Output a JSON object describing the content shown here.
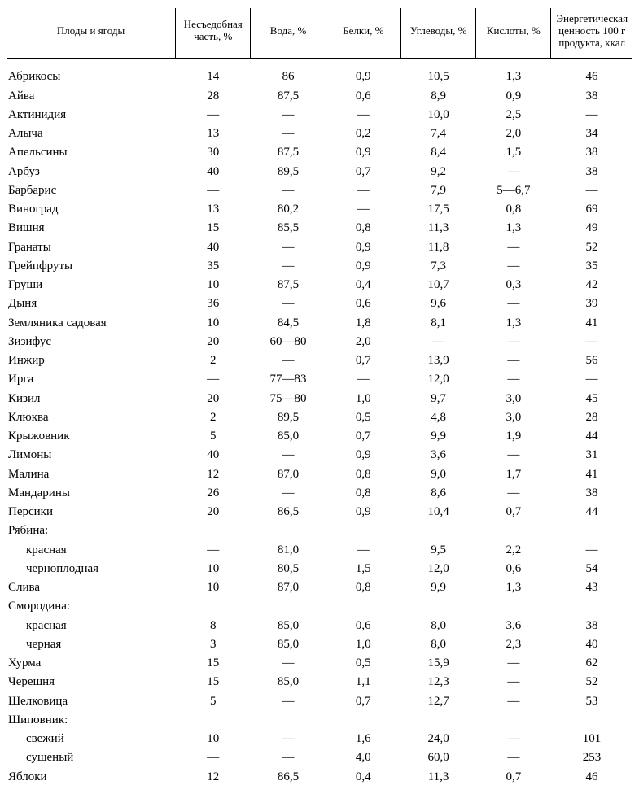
{
  "table": {
    "type": "table",
    "background_color": "#ffffff",
    "text_color": "#000000",
    "font_family": "Times New Roman",
    "header_fontsize": 13,
    "body_fontsize": 15,
    "border_color": "#000000",
    "column_widths_pct": [
      27,
      12,
      12,
      12,
      12,
      12,
      13
    ],
    "columns": [
      "Плоды и ягоды",
      "Несъедоб­ная часть, %",
      "Вода, %",
      "Белки, %",
      "Углеводы, %",
      "Кислоты, %",
      "Энергети­ческая ценность 100 г продукта, ккал"
    ],
    "rows": [
      {
        "name": "Абрикосы",
        "v": [
          "14",
          "86",
          "0,9",
          "10,5",
          "1,3",
          "46"
        ]
      },
      {
        "name": "Айва",
        "v": [
          "28",
          "87,5",
          "0,6",
          "8,9",
          "0,9",
          "38"
        ]
      },
      {
        "name": "Актинидия",
        "v": [
          "—",
          "—",
          "—",
          "10,0",
          "2,5",
          "—"
        ]
      },
      {
        "name": "Алыча",
        "v": [
          "13",
          "—",
          "0,2",
          "7,4",
          "2,0",
          "34"
        ]
      },
      {
        "name": "Апельсины",
        "v": [
          "30",
          "87,5",
          "0,9",
          "8,4",
          "1,5",
          "38"
        ]
      },
      {
        "name": "Арбуз",
        "v": [
          "40",
          "89,5",
          "0,7",
          "9,2",
          "—",
          "38"
        ]
      },
      {
        "name": "Барбарис",
        "v": [
          "—",
          "—",
          "—",
          "7,9",
          "5—6,7",
          "—"
        ]
      },
      {
        "name": "Виноград",
        "v": [
          "13",
          "80,2",
          "—",
          "17,5",
          "0,8",
          "69"
        ]
      },
      {
        "name": "Вишня",
        "v": [
          "15",
          "85,5",
          "0,8",
          "11,3",
          "1,3",
          "49"
        ]
      },
      {
        "name": "Гранаты",
        "v": [
          "40",
          "—",
          "0,9",
          "11,8",
          "—",
          "52"
        ]
      },
      {
        "name": "Грейпфруты",
        "v": [
          "35",
          "—",
          "0,9",
          "7,3",
          "—",
          "35"
        ]
      },
      {
        "name": "Груши",
        "v": [
          "10",
          "87,5",
          "0,4",
          "10,7",
          "0,3",
          "42"
        ]
      },
      {
        "name": "Дыня",
        "v": [
          "36",
          "—",
          "0,6",
          "9,6",
          "—",
          "39"
        ]
      },
      {
        "name": "Земляника садовая",
        "v": [
          "10",
          "84,5",
          "1,8",
          "8,1",
          "1,3",
          "41"
        ]
      },
      {
        "name": "Зизифус",
        "v": [
          "20",
          "60—80",
          "2,0",
          "—",
          "—",
          "—"
        ]
      },
      {
        "name": "Инжир",
        "v": [
          "2",
          "—",
          "0,7",
          "13,9",
          "—",
          "56"
        ]
      },
      {
        "name": "Ирга",
        "v": [
          "—",
          "77—83",
          "—",
          "12,0",
          "—",
          "—"
        ]
      },
      {
        "name": "Кизил",
        "v": [
          "20",
          "75—80",
          "1,0",
          "9,7",
          "3,0",
          "45"
        ]
      },
      {
        "name": "Клюква",
        "v": [
          "2",
          "89,5",
          "0,5",
          "4,8",
          "3,0",
          "28"
        ]
      },
      {
        "name": "Крыжовник",
        "v": [
          "5",
          "85,0",
          "0,7",
          "9,9",
          "1,9",
          "44"
        ]
      },
      {
        "name": "Лимоны",
        "v": [
          "40",
          "—",
          "0,9",
          "3,6",
          "—",
          "31"
        ]
      },
      {
        "name": "Малина",
        "v": [
          "12",
          "87,0",
          "0,8",
          "9,0",
          "1,7",
          "41"
        ]
      },
      {
        "name": "Мандарины",
        "v": [
          "26",
          "—",
          "0,8",
          "8,6",
          "—",
          "38"
        ]
      },
      {
        "name": "Персики",
        "v": [
          "20",
          "86,5",
          "0,9",
          "10,4",
          "0,7",
          "44"
        ]
      },
      {
        "name": "Рябина:",
        "v": [
          "",
          "",
          "",
          "",
          "",
          ""
        ]
      },
      {
        "name": "красная",
        "indent": true,
        "v": [
          "—",
          "81,0",
          "—",
          "9,5",
          "2,2",
          "—"
        ]
      },
      {
        "name": "черноплодная",
        "indent": true,
        "v": [
          "10",
          "80,5",
          "1,5",
          "12,0",
          "0,6",
          "54"
        ]
      },
      {
        "name": "Слива",
        "v": [
          "10",
          "87,0",
          "0,8",
          "9,9",
          "1,3",
          "43"
        ]
      },
      {
        "name": "Смородина:",
        "v": [
          "",
          "",
          "",
          "",
          "",
          ""
        ]
      },
      {
        "name": "красная",
        "indent": true,
        "v": [
          "8",
          "85,0",
          "0,6",
          "8,0",
          "3,6",
          "38"
        ]
      },
      {
        "name": "черная",
        "indent": true,
        "v": [
          "3",
          "85,0",
          "1,0",
          "8,0",
          "2,3",
          "40"
        ]
      },
      {
        "name": "Хурма",
        "v": [
          "15",
          "—",
          "0,5",
          "15,9",
          "—",
          "62"
        ]
      },
      {
        "name": "Черешня",
        "v": [
          "15",
          "85,0",
          "1,1",
          "12,3",
          "—",
          "52"
        ]
      },
      {
        "name": "Шелковица",
        "v": [
          "5",
          "—",
          "0,7",
          "12,7",
          "—",
          "53"
        ]
      },
      {
        "name": "Шиповник:",
        "v": [
          "",
          "",
          "",
          "",
          "",
          ""
        ]
      },
      {
        "name": "свежий",
        "indent": true,
        "v": [
          "10",
          "—",
          "1,6",
          "24,0",
          "—",
          "101"
        ]
      },
      {
        "name": "сушеный",
        "indent": true,
        "v": [
          "—",
          "—",
          "4,0",
          "60,0",
          "—",
          "253"
        ]
      },
      {
        "name": "Яблоки",
        "v": [
          "12",
          "86,5",
          "0,4",
          "11,3",
          "0,7",
          "46"
        ]
      }
    ]
  }
}
